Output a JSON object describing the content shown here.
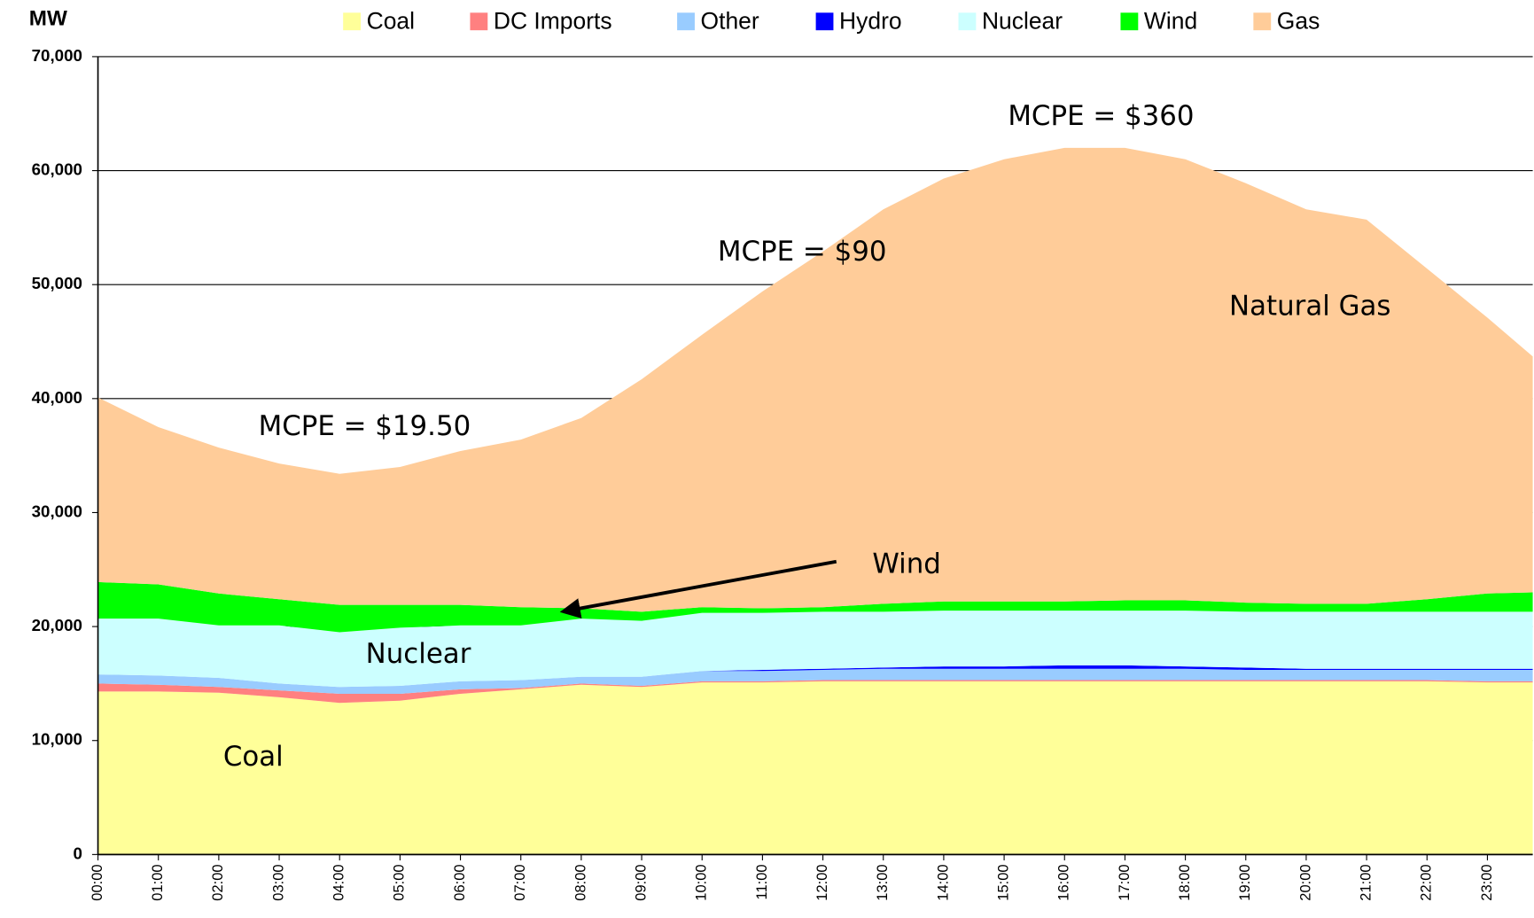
{
  "chart_data": {
    "type": "stacked-area",
    "y_label": "MW",
    "x": [
      0,
      1,
      2,
      3,
      4,
      5,
      6,
      7,
      8,
      9,
      10,
      11,
      12,
      13,
      14,
      15,
      16,
      17,
      18,
      19,
      20,
      21,
      22,
      23,
      23.75
    ],
    "xlim": [
      0,
      23.75
    ],
    "xticks": [
      {
        "value": 0,
        "label": "00:00"
      },
      {
        "value": 1,
        "label": "01:00"
      },
      {
        "value": 2,
        "label": "02:00"
      },
      {
        "value": 3,
        "label": "03:00"
      },
      {
        "value": 4,
        "label": "04:00"
      },
      {
        "value": 5,
        "label": "05:00"
      },
      {
        "value": 6,
        "label": "06:00"
      },
      {
        "value": 7,
        "label": "07:00"
      },
      {
        "value": 8,
        "label": "08:00"
      },
      {
        "value": 9,
        "label": "09:00"
      },
      {
        "value": 10,
        "label": "10:00"
      },
      {
        "value": 11,
        "label": "11:00"
      },
      {
        "value": 12,
        "label": "12:00"
      },
      {
        "value": 13,
        "label": "13:00"
      },
      {
        "value": 14,
        "label": "14:00"
      },
      {
        "value": 15,
        "label": "15:00"
      },
      {
        "value": 16,
        "label": "16:00"
      },
      {
        "value": 17,
        "label": "17:00"
      },
      {
        "value": 18,
        "label": "18:00"
      },
      {
        "value": 19,
        "label": "19:00"
      },
      {
        "value": 20,
        "label": "20:00"
      },
      {
        "value": 21,
        "label": "21:00"
      },
      {
        "value": 22,
        "label": "22:00"
      },
      {
        "value": 23,
        "label": "23:00"
      }
    ],
    "ylim": [
      0,
      70000
    ],
    "yticks": [
      0,
      {
        "value": 10000,
        "label": "10,000"
      },
      {
        "value": 20000,
        "label": "20,000"
      },
      {
        "value": 30000,
        "label": "30,000"
      },
      {
        "value": 40000,
        "label": "40,000"
      },
      {
        "value": 50000,
        "label": "50,000"
      },
      {
        "value": 60000,
        "label": "60,000"
      },
      {
        "value": 70000,
        "label": "70,000"
      }
    ],
    "grid": true,
    "legend": "top",
    "series": [
      {
        "name": "Coal",
        "color": "#ffff99",
        "values": [
          14300,
          14300,
          14200,
          13800,
          13300,
          13500,
          14100,
          14500,
          14900,
          14700,
          15100,
          15100,
          15200,
          15200,
          15200,
          15200,
          15200,
          15200,
          15200,
          15200,
          15200,
          15200,
          15200,
          15100,
          15100
        ]
      },
      {
        "name": "DC Imports",
        "color": "#ff8080",
        "values": [
          700,
          600,
          500,
          600,
          800,
          600,
          400,
          100,
          100,
          100,
          100,
          100,
          100,
          100,
          100,
          100,
          100,
          100,
          100,
          100,
          100,
          100,
          100,
          100,
          100
        ]
      },
      {
        "name": "Other",
        "color": "#99ccff",
        "values": [
          800,
          800,
          800,
          600,
          600,
          700,
          700,
          700,
          600,
          800,
          900,
          900,
          900,
          1000,
          1000,
          1000,
          1000,
          1000,
          1000,
          900,
          900,
          900,
          900,
          1000,
          1000
        ]
      },
      {
        "name": "Hydro",
        "color": "#0000ff",
        "values": [
          0,
          0,
          0,
          0,
          0,
          0,
          0,
          0,
          0,
          0,
          0,
          100,
          100,
          100,
          200,
          200,
          300,
          300,
          200,
          200,
          100,
          100,
          100,
          100,
          100
        ]
      },
      {
        "name": "Nuclear",
        "color": "#ccffff",
        "values": [
          4900,
          5000,
          4600,
          5100,
          4800,
          5100,
          4900,
          4800,
          5100,
          4900,
          5100,
          5000,
          5000,
          4900,
          4900,
          4900,
          4800,
          4800,
          4900,
          4900,
          5000,
          5000,
          5000,
          5000,
          5000
        ]
      },
      {
        "name": "Wind",
        "color": "#00ff00",
        "values": [
          3200,
          3000,
          2800,
          2300,
          2400,
          2000,
          1800,
          1600,
          900,
          800,
          500,
          400,
          400,
          700,
          800,
          800,
          800,
          900,
          900,
          800,
          700,
          700,
          1100,
          1600,
          1700
        ]
      },
      {
        "name": "Gas",
        "color": "#ffcc99",
        "values": [
          16200,
          13800,
          12800,
          11900,
          11500,
          12100,
          13500,
          14700,
          16700,
          20400,
          23900,
          27800,
          31200,
          34600,
          37100,
          38800,
          39800,
          39700,
          38700,
          36800,
          34600,
          33700,
          29000,
          24200,
          20700
        ]
      }
    ],
    "annotations": [
      "MCPE = $19.50",
      "MCPE = $90",
      "MCPE = $360",
      "Natural Gas",
      "Wind",
      "Nuclear",
      "Coal"
    ]
  }
}
